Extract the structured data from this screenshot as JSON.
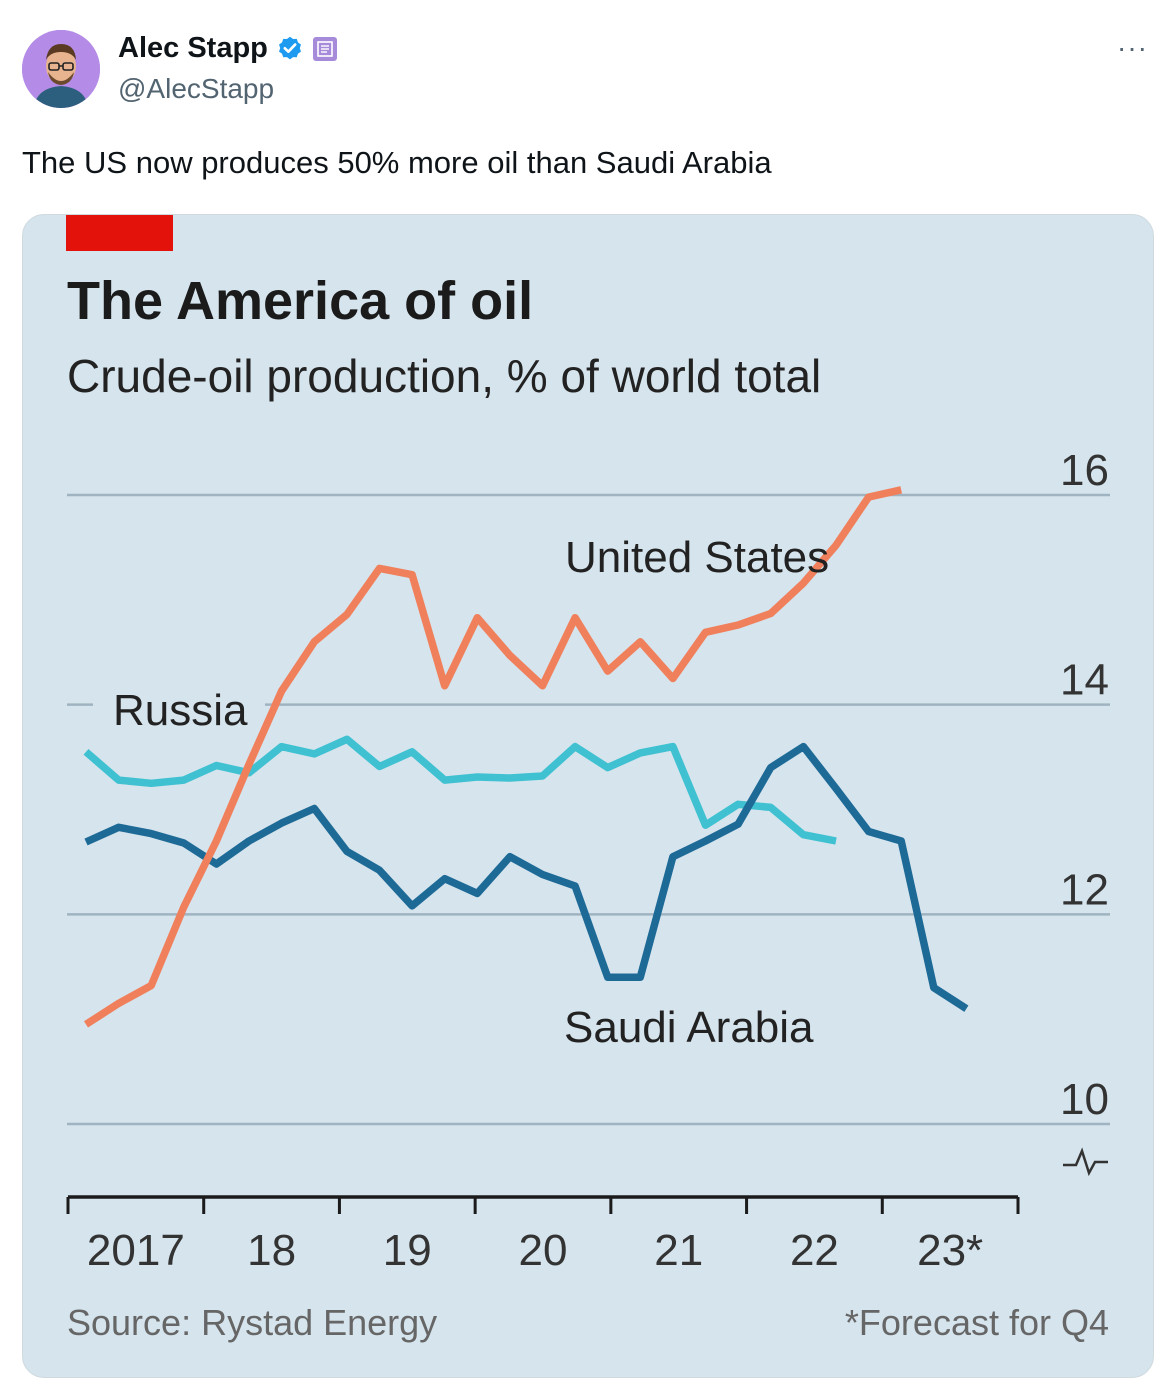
{
  "tweet": {
    "author_name": "Alec Stapp",
    "handle": "@AlecStapp",
    "more_label": "···",
    "text": "The US now produces 50% more oil than Saudi Arabia",
    "verified_color": "#1d9bf0",
    "badge_color": "#a78bdb"
  },
  "chart_data": {
    "type": "line",
    "title": "The America of oil",
    "subtitle": "Crude-oil production, % of world total",
    "source": "Source: Rystad Energy",
    "footnote": "*Forecast for Q4",
    "x_tick_labels": [
      "2017",
      "18",
      "19",
      "20",
      "21",
      "22",
      "23*"
    ],
    "x_range": [
      2017,
      2024
    ],
    "y_ticks": [
      10,
      12,
      14,
      16
    ],
    "ylim": [
      10,
      16
    ],
    "x": [
      2017.0,
      2017.25,
      2017.5,
      2017.75,
      2018.0,
      2018.25,
      2018.5,
      2018.75,
      2019.0,
      2019.25,
      2019.5,
      2019.75,
      2020.0,
      2020.25,
      2020.5,
      2020.75,
      2021.0,
      2021.25,
      2021.5,
      2021.75,
      2022.0,
      2022.25,
      2022.5,
      2022.75,
      2023.0,
      2023.25,
      2023.5,
      2023.75
    ],
    "series": [
      {
        "name": "United States",
        "color": "#f0805c",
        "values": [
          10.95,
          11.15,
          11.32,
          12.07,
          12.7,
          13.43,
          14.13,
          14.6,
          14.86,
          15.3,
          15.24,
          14.18,
          14.83,
          14.47,
          14.18,
          14.83,
          14.32,
          14.6,
          14.25,
          14.69,
          14.76,
          14.87,
          15.16,
          15.52,
          15.98,
          16.05,
          null,
          null
        ]
      },
      {
        "name": "Russia",
        "color": "#3fc1d1",
        "values": [
          13.55,
          13.28,
          13.25,
          13.28,
          13.42,
          13.35,
          13.6,
          13.53,
          13.67,
          13.41,
          13.55,
          13.28,
          13.31,
          13.3,
          13.32,
          13.6,
          13.4,
          13.54,
          13.6,
          12.85,
          13.05,
          13.02,
          12.76,
          12.7,
          null,
          null,
          null,
          null
        ]
      },
      {
        "name": "Saudi Arabia",
        "color": "#1e6a97",
        "values": [
          12.69,
          12.83,
          12.77,
          12.68,
          12.48,
          12.7,
          12.87,
          13.01,
          12.6,
          12.42,
          12.08,
          12.34,
          12.2,
          12.55,
          12.38,
          12.27,
          11.4,
          11.4,
          12.55,
          12.7,
          12.86,
          13.4,
          13.6,
          13.2,
          12.79,
          12.7,
          11.3,
          11.1
        ]
      }
    ],
    "labels": {
      "united_states": "United States",
      "russia": "Russia",
      "saudi_arabia": "Saudi Arabia"
    }
  }
}
